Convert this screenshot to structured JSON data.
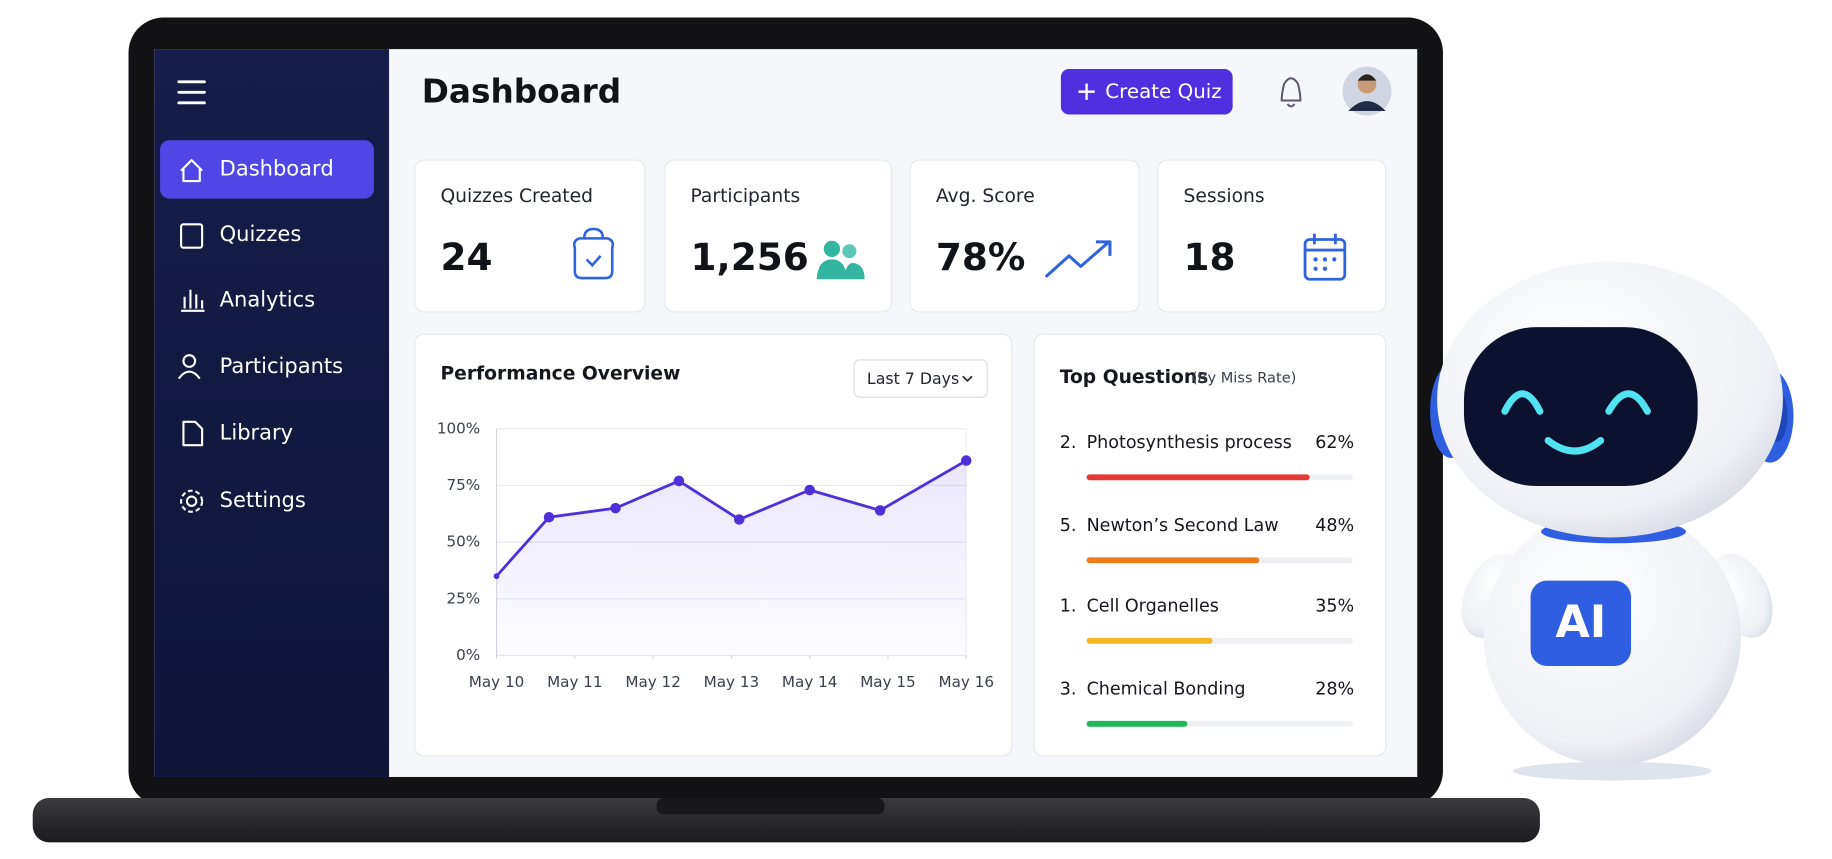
{
  "sidebar": {
    "nav": [
      "Dashboard",
      "Quizzes",
      "Analytics",
      "Participants",
      "Library",
      "Settings"
    ]
  },
  "header": {
    "title": "Dashboard",
    "button": "Create Quiz"
  },
  "stats": [
    {
      "label": "Quizzes Created",
      "value": "24"
    },
    {
      "label": "Participants",
      "value": "1,256"
    },
    {
      "label": "Avg. Score",
      "value": "78%"
    },
    {
      "label": "Sessions",
      "value": "18"
    }
  ],
  "chart_data": {
    "type": "line",
    "title": "Performance Overview",
    "range_selector": "Last 7 Days",
    "x": [
      0,
      0.67,
      1.52,
      2.33,
      3.1,
      4.0,
      4.9,
      6.0
    ],
    "series": [
      {
        "color": "#4f2fd9",
        "values": [
          35,
          61,
          65,
          77,
          60,
          73,
          64,
          86
        ]
      }
    ],
    "xlim": [
      0,
      6
    ],
    "xticks": [
      {
        "value": 0,
        "label": "May 10"
      },
      {
        "value": 1,
        "label": "May 11"
      },
      {
        "value": 2,
        "label": "May 12"
      },
      {
        "value": 3,
        "label": "May 13"
      },
      {
        "value": 4,
        "label": "May 14"
      },
      {
        "value": 5,
        "label": "May 15"
      },
      {
        "value": 6,
        "label": "May 16"
      }
    ],
    "ylim": [
      0,
      100
    ],
    "yticks": [
      {
        "value": 0,
        "label": "0%"
      },
      {
        "value": 25,
        "label": "25%"
      },
      {
        "value": 50,
        "label": "50%"
      },
      {
        "value": 75,
        "label": "75%"
      },
      {
        "value": 100,
        "label": "100%"
      }
    ],
    "grid": true
  },
  "top_questions": {
    "title": "Top Questions",
    "subtitle": "(By Miss Rate)",
    "items": [
      {
        "rank": "2.",
        "question": "Photosynthesis process",
        "miss_rate": 62,
        "miss_rate_label": "62%",
        "color": "#e53935"
      },
      {
        "rank": "5.",
        "question": "Newton’s Second Law",
        "miss_rate": 48,
        "miss_rate_label": "48%",
        "color": "#f07a1a"
      },
      {
        "rank": "1.",
        "question": "Cell Organelles",
        "miss_rate": 35,
        "miss_rate_label": "35%",
        "color": "#f2b824"
      },
      {
        "rank": "3.",
        "question": "Chemical Bonding",
        "miss_rate": 28,
        "miss_rate_label": "28%",
        "color": "#1db954"
      }
    ]
  },
  "robot": {
    "badge": "AI"
  }
}
